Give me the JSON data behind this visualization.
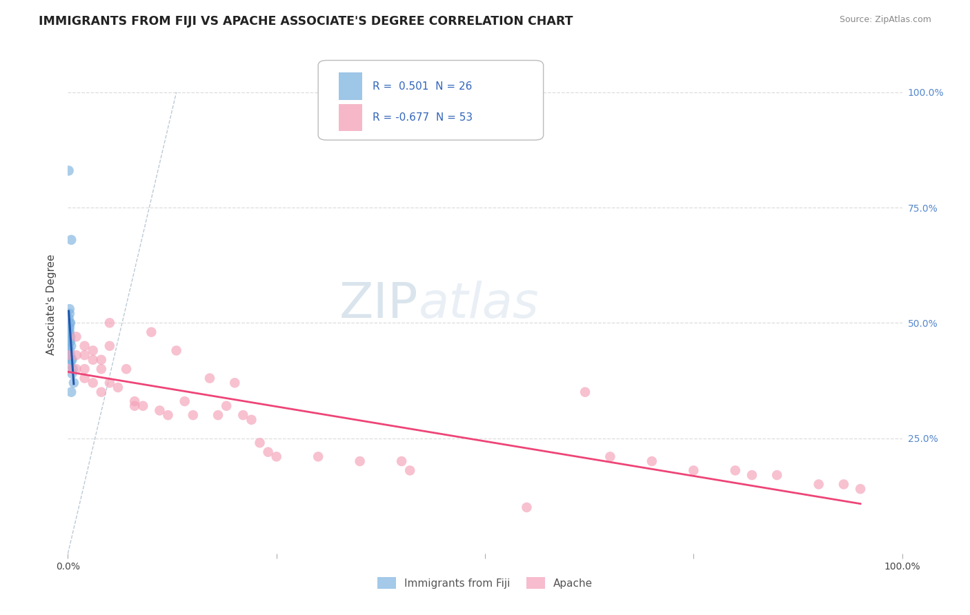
{
  "title": "IMMIGRANTS FROM FIJI VS APACHE ASSOCIATE'S DEGREE CORRELATION CHART",
  "source": "Source: ZipAtlas.com",
  "ylabel": "Associate's Degree",
  "fiji_R": 0.501,
  "fiji_N": 26,
  "apache_R": -0.677,
  "apache_N": 53,
  "fiji_color": "#7EB3E0",
  "apache_color": "#F4A0B8",
  "fiji_scatter": [
    [
      0.001,
      0.83
    ],
    [
      0.004,
      0.68
    ],
    [
      0.002,
      0.53
    ],
    [
      0.002,
      0.52
    ],
    [
      0.001,
      0.51
    ],
    [
      0.002,
      0.5
    ],
    [
      0.003,
      0.5
    ],
    [
      0.001,
      0.49
    ],
    [
      0.002,
      0.49
    ],
    [
      0.001,
      0.48
    ],
    [
      0.002,
      0.48
    ],
    [
      0.003,
      0.47
    ],
    [
      0.001,
      0.47
    ],
    [
      0.002,
      0.46
    ],
    [
      0.003,
      0.46
    ],
    [
      0.004,
      0.45
    ],
    [
      0.001,
      0.45
    ],
    [
      0.002,
      0.44
    ],
    [
      0.003,
      0.43
    ],
    [
      0.004,
      0.42
    ],
    [
      0.005,
      0.42
    ],
    [
      0.003,
      0.41
    ],
    [
      0.006,
      0.4
    ],
    [
      0.005,
      0.39
    ],
    [
      0.007,
      0.37
    ],
    [
      0.004,
      0.35
    ]
  ],
  "apache_scatter": [
    [
      0.0,
      0.43
    ],
    [
      0.0,
      0.4
    ],
    [
      0.01,
      0.47
    ],
    [
      0.01,
      0.43
    ],
    [
      0.01,
      0.4
    ],
    [
      0.02,
      0.45
    ],
    [
      0.02,
      0.43
    ],
    [
      0.02,
      0.4
    ],
    [
      0.02,
      0.38
    ],
    [
      0.03,
      0.44
    ],
    [
      0.03,
      0.42
    ],
    [
      0.03,
      0.37
    ],
    [
      0.04,
      0.42
    ],
    [
      0.04,
      0.4
    ],
    [
      0.04,
      0.35
    ],
    [
      0.05,
      0.5
    ],
    [
      0.05,
      0.45
    ],
    [
      0.05,
      0.37
    ],
    [
      0.06,
      0.36
    ],
    [
      0.07,
      0.4
    ],
    [
      0.08,
      0.33
    ],
    [
      0.08,
      0.32
    ],
    [
      0.09,
      0.32
    ],
    [
      0.1,
      0.48
    ],
    [
      0.11,
      0.31
    ],
    [
      0.12,
      0.3
    ],
    [
      0.13,
      0.44
    ],
    [
      0.14,
      0.33
    ],
    [
      0.15,
      0.3
    ],
    [
      0.17,
      0.38
    ],
    [
      0.18,
      0.3
    ],
    [
      0.19,
      0.32
    ],
    [
      0.2,
      0.37
    ],
    [
      0.21,
      0.3
    ],
    [
      0.22,
      0.29
    ],
    [
      0.23,
      0.24
    ],
    [
      0.24,
      0.22
    ],
    [
      0.25,
      0.21
    ],
    [
      0.3,
      0.21
    ],
    [
      0.35,
      0.2
    ],
    [
      0.4,
      0.2
    ],
    [
      0.41,
      0.18
    ],
    [
      0.55,
      0.1
    ],
    [
      0.62,
      0.35
    ],
    [
      0.65,
      0.21
    ],
    [
      0.7,
      0.2
    ],
    [
      0.75,
      0.18
    ],
    [
      0.8,
      0.18
    ],
    [
      0.82,
      0.17
    ],
    [
      0.85,
      0.17
    ],
    [
      0.9,
      0.15
    ],
    [
      0.93,
      0.15
    ],
    [
      0.95,
      0.14
    ]
  ],
  "watermark_zip": "ZIP",
  "watermark_atlas": "atlas",
  "background_color": "#FFFFFF",
  "grid_color": "#DDDDDD",
  "xlim": [
    0,
    1.0
  ],
  "ylim": [
    0,
    1.08
  ],
  "yticks": [
    0.25,
    0.5,
    0.75,
    1.0
  ],
  "ytick_labels_right": [
    "25.0%",
    "50.0%",
    "75.0%",
    "100.0%"
  ],
  "xtick_labels": [
    "0.0%",
    "100.0%"
  ]
}
